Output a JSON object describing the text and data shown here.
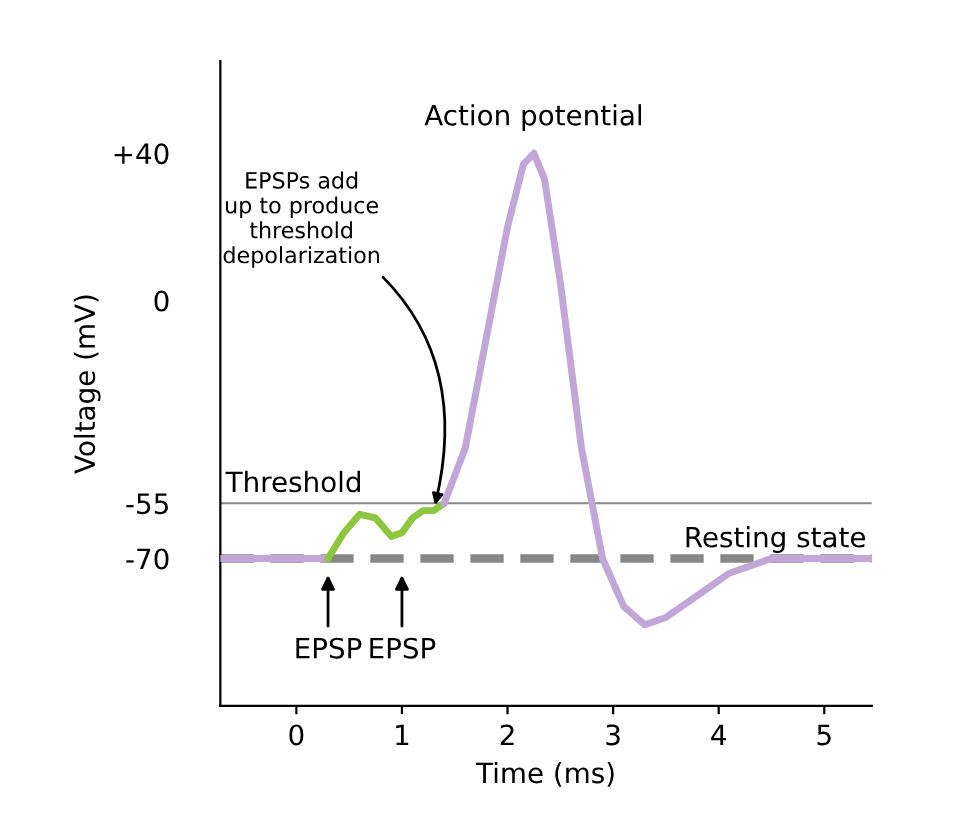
{
  "chart_data": {
    "type": "line",
    "xlabel": "Time (ms)",
    "ylabel": "Voltage (mV)",
    "xlim": [
      -0.72,
      5.45
    ],
    "ylim": [
      -110,
      65
    ],
    "xticks": [
      0,
      1,
      2,
      3,
      4,
      5
    ],
    "yticks": [
      {
        "value": 40,
        "label": "+40"
      },
      0,
      -55,
      -70
    ],
    "grid": false,
    "legend": false,
    "marker": "none",
    "series": [
      {
        "color": "#c3a6d8",
        "x": [
          -0.72,
          0.3
        ],
        "values": [
          -70,
          -70
        ]
      },
      {
        "color": "#8dc63f",
        "x": [
          0.3,
          0.45,
          0.6,
          0.75,
          0.9,
          1.0,
          1.1,
          1.2,
          1.3,
          1.4
        ],
        "values": [
          -70,
          -63,
          -58,
          -59,
          -64,
          -63,
          -59,
          -57,
          -57,
          -55
        ]
      },
      {
        "color": "#c3a6d8",
        "x": [
          1.4,
          1.6,
          1.8,
          2.0,
          2.15,
          2.25,
          2.35,
          2.5,
          2.7,
          2.9,
          3.1,
          3.3,
          3.5,
          3.8,
          4.1,
          4.5,
          5.45
        ],
        "values": [
          -55,
          -40,
          -10,
          20,
          37,
          40,
          33,
          5,
          -40,
          -70,
          -83,
          -88,
          -86,
          -80,
          -74,
          -70,
          -70
        ]
      }
    ],
    "ref_lines": [
      {
        "axis": "y",
        "value": -55,
        "label": "Threshold",
        "color": "#888888",
        "line_style": "solid"
      },
      {
        "axis": "y",
        "value": -70,
        "label": "Resting state",
        "color": "#888888",
        "line_style": "dashed"
      }
    ],
    "annotations": [
      {
        "text": "Action potential",
        "x": 2.25,
        "y": 40
      },
      {
        "text": "EPSPs add\nup to produce\nthreshold\ndepolarization",
        "x": 1.3,
        "y": -57
      },
      {
        "text": "EPSP",
        "x": 0.3,
        "y": -70
      },
      {
        "text": "EPSP",
        "x": 1.0,
        "y": -70
      }
    ]
  }
}
